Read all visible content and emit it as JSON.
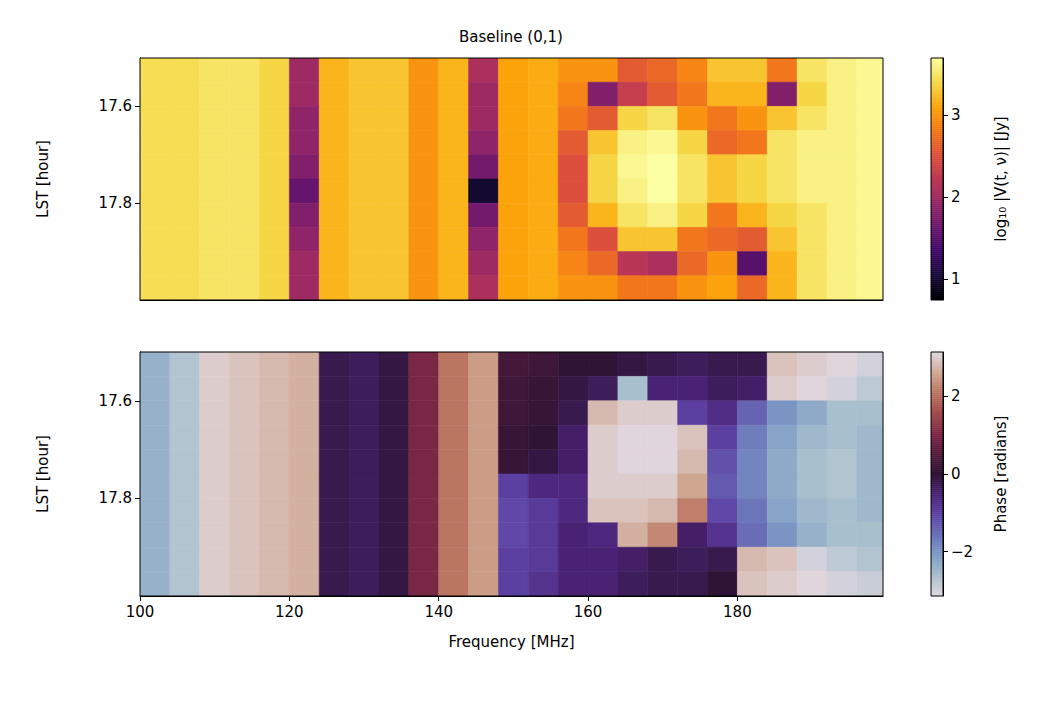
{
  "chart_data": [
    {
      "type": "heatmap",
      "title": "Baseline (0,1)",
      "y_label": "LST [hour]",
      "tick_labels": "y",
      "xlim": [
        100,
        199.5
      ],
      "ylim": [
        17.5,
        18.0
      ],
      "yticks": [
        17.6,
        17.8
      ],
      "x_edges": [
        100,
        104,
        108,
        112,
        116,
        120,
        124,
        128,
        132,
        136,
        140,
        144,
        148,
        152,
        156,
        160,
        164,
        168,
        172,
        176,
        180,
        184,
        188,
        192,
        196,
        199.5
      ],
      "y_edges": [
        17.5,
        17.55,
        17.6,
        17.65,
        17.7,
        17.75,
        17.8,
        17.85,
        17.9,
        17.95,
        18.0
      ],
      "values": [
        [
          3.45,
          3.45,
          3.5,
          3.5,
          3.4,
          2.0,
          3.2,
          3.3,
          3.3,
          3.0,
          3.2,
          2.1,
          3.1,
          3.15,
          3.0,
          3.0,
          2.6,
          2.7,
          2.9,
          3.3,
          3.3,
          2.8,
          3.5,
          3.6,
          3.65
        ],
        [
          3.45,
          3.45,
          3.5,
          3.5,
          3.4,
          2.0,
          3.2,
          3.3,
          3.3,
          3.0,
          3.2,
          2.0,
          3.1,
          3.15,
          2.9,
          1.8,
          2.3,
          2.6,
          2.8,
          3.2,
          3.2,
          1.8,
          3.4,
          3.6,
          3.65
        ],
        [
          3.45,
          3.45,
          3.5,
          3.5,
          3.4,
          1.9,
          3.2,
          3.3,
          3.3,
          3.0,
          3.2,
          2.0,
          3.1,
          3.15,
          2.8,
          2.6,
          3.4,
          3.5,
          3.0,
          2.8,
          3.0,
          3.3,
          3.5,
          3.6,
          3.65
        ],
        [
          3.45,
          3.45,
          3.5,
          3.5,
          3.4,
          1.9,
          3.2,
          3.3,
          3.3,
          3.0,
          3.2,
          1.9,
          3.1,
          3.15,
          2.6,
          3.3,
          3.6,
          3.65,
          3.4,
          2.7,
          2.8,
          3.5,
          3.6,
          3.6,
          3.65
        ],
        [
          3.45,
          3.45,
          3.5,
          3.5,
          3.4,
          1.8,
          3.2,
          3.3,
          3.3,
          3.0,
          3.2,
          1.7,
          3.1,
          3.15,
          2.5,
          3.4,
          3.65,
          3.7,
          3.5,
          3.3,
          3.4,
          3.5,
          3.6,
          3.6,
          3.65
        ],
        [
          3.45,
          3.45,
          3.5,
          3.5,
          3.4,
          1.6,
          3.2,
          3.3,
          3.3,
          3.0,
          3.2,
          1.0,
          3.1,
          3.15,
          2.5,
          3.4,
          3.6,
          3.7,
          3.5,
          3.3,
          3.4,
          3.5,
          3.6,
          3.6,
          3.65
        ],
        [
          3.45,
          3.45,
          3.5,
          3.5,
          3.4,
          1.8,
          3.2,
          3.3,
          3.3,
          3.0,
          3.2,
          1.7,
          3.1,
          3.15,
          2.6,
          3.2,
          3.5,
          3.6,
          3.4,
          2.8,
          3.2,
          3.4,
          3.5,
          3.6,
          3.65
        ],
        [
          3.45,
          3.45,
          3.5,
          3.5,
          3.4,
          1.9,
          3.2,
          3.3,
          3.3,
          3.0,
          3.2,
          1.9,
          3.1,
          3.15,
          2.8,
          2.5,
          3.3,
          3.3,
          2.8,
          2.7,
          2.6,
          3.3,
          3.5,
          3.6,
          3.65
        ],
        [
          3.45,
          3.45,
          3.5,
          3.5,
          3.4,
          2.0,
          3.2,
          3.3,
          3.3,
          3.0,
          3.2,
          2.0,
          3.1,
          3.15,
          2.9,
          2.7,
          2.2,
          2.1,
          2.7,
          3.0,
          1.5,
          3.2,
          3.5,
          3.6,
          3.65
        ],
        [
          3.45,
          3.45,
          3.5,
          3.5,
          3.4,
          2.0,
          3.2,
          3.3,
          3.3,
          3.0,
          3.2,
          2.1,
          3.1,
          3.15,
          3.0,
          3.0,
          2.8,
          2.8,
          3.0,
          3.1,
          2.7,
          3.2,
          3.5,
          3.6,
          3.65
        ]
      ],
      "colorbar": {
        "label": "log₁₀ |V(t, ν)| [Jy]",
        "range": [
          0.75,
          3.7
        ],
        "ticks": [
          1,
          2,
          3
        ]
      }
    },
    {
      "type": "heatmap",
      "x_label": "Frequency [MHz]",
      "y_label": "LST [hour]",
      "xlim": [
        100,
        199.5
      ],
      "ylim": [
        17.5,
        18.0
      ],
      "xticks": [
        100,
        120,
        140,
        160,
        180
      ],
      "yticks": [
        17.6,
        17.8
      ],
      "x_edges": [
        100,
        104,
        108,
        112,
        116,
        120,
        124,
        128,
        132,
        136,
        140,
        144,
        148,
        152,
        156,
        160,
        164,
        168,
        172,
        176,
        180,
        184,
        188,
        192,
        196,
        199.5
      ],
      "y_edges": [
        17.5,
        17.55,
        17.6,
        17.65,
        17.7,
        17.75,
        17.8,
        17.85,
        17.9,
        17.95,
        18.0
      ],
      "values": [
        [
          -2.4,
          -2.7,
          3.0,
          2.9,
          2.8,
          2.7,
          -0.2,
          -0.3,
          -0.1,
          1.0,
          2.1,
          2.5,
          0.3,
          0.2,
          0.0,
          0.0,
          -0.1,
          -0.2,
          -0.3,
          -0.2,
          -0.2,
          2.9,
          3.0,
          3.1,
          -3.0
        ],
        [
          -2.4,
          -2.7,
          3.0,
          2.9,
          2.8,
          2.7,
          -0.2,
          -0.3,
          -0.1,
          1.0,
          2.1,
          2.5,
          0.2,
          0.1,
          -0.1,
          -0.3,
          -2.6,
          -0.5,
          -0.5,
          -0.3,
          -0.4,
          3.0,
          3.1,
          -3.0,
          -2.8
        ],
        [
          -2.4,
          -2.7,
          3.0,
          2.9,
          2.8,
          2.7,
          -0.2,
          -0.3,
          -0.1,
          1.0,
          2.1,
          2.5,
          0.2,
          0.1,
          -0.2,
          2.8,
          3.0,
          3.0,
          -1.0,
          -0.7,
          -1.4,
          -2.0,
          -2.3,
          -2.6,
          -2.6
        ],
        [
          -2.4,
          -2.7,
          3.0,
          2.9,
          2.8,
          2.7,
          -0.2,
          -0.3,
          -0.1,
          1.0,
          2.1,
          2.5,
          0.1,
          0.0,
          -0.4,
          3.0,
          3.1,
          3.1,
          2.9,
          -1.0,
          -1.7,
          -2.2,
          -2.5,
          -2.6,
          -2.5
        ],
        [
          -2.4,
          -2.7,
          3.0,
          2.9,
          2.8,
          2.7,
          -0.2,
          -0.3,
          -0.1,
          1.0,
          2.1,
          2.5,
          0.1,
          -0.1,
          -0.4,
          3.0,
          3.1,
          3.1,
          2.8,
          -1.2,
          -1.8,
          -2.3,
          -2.6,
          -2.7,
          -2.5
        ],
        [
          -2.4,
          -2.7,
          3.0,
          2.9,
          2.8,
          2.7,
          -0.2,
          -0.3,
          -0.1,
          1.0,
          2.1,
          2.5,
          -1.0,
          -0.6,
          -0.6,
          3.0,
          3.0,
          3.0,
          2.6,
          -1.3,
          -1.8,
          -2.3,
          -2.6,
          -2.7,
          -2.5
        ],
        [
          -2.4,
          -2.7,
          3.0,
          2.9,
          2.8,
          2.7,
          -0.2,
          -0.3,
          -0.1,
          1.0,
          2.1,
          2.5,
          -1.1,
          -0.9,
          -0.6,
          2.9,
          2.9,
          2.8,
          2.2,
          -1.1,
          -1.6,
          -2.2,
          -2.5,
          -2.6,
          -2.5
        ],
        [
          -2.4,
          -2.7,
          3.0,
          2.9,
          2.8,
          2.7,
          -0.2,
          -0.3,
          -0.1,
          1.0,
          2.1,
          2.5,
          -1.1,
          -0.9,
          -0.5,
          -0.6,
          2.7,
          2.3,
          -0.4,
          -0.8,
          -1.5,
          -2.0,
          -2.4,
          -2.6,
          -2.6
        ],
        [
          -2.4,
          -2.7,
          3.0,
          2.9,
          2.8,
          2.7,
          -0.2,
          -0.3,
          -0.1,
          1.0,
          2.1,
          2.5,
          -1.0,
          -0.9,
          -0.5,
          -0.5,
          -0.4,
          -0.2,
          -0.3,
          -0.2,
          2.8,
          2.9,
          -3.0,
          -2.8,
          -2.7
        ],
        [
          -2.4,
          -2.7,
          3.0,
          2.9,
          2.8,
          2.7,
          -0.2,
          -0.3,
          -0.1,
          1.0,
          2.1,
          2.5,
          -1.0,
          -0.8,
          -0.5,
          -0.5,
          -0.3,
          -0.2,
          -0.2,
          0.0,
          2.9,
          3.0,
          3.1,
          -3.0,
          -2.9
        ]
      ],
      "colorbar": {
        "label": "Phase [radians]",
        "range": [
          -3.1416,
          3.1416
        ],
        "ticks": [
          {
            "value": -2,
            "label": "−2"
          },
          0,
          2
        ]
      }
    }
  ]
}
